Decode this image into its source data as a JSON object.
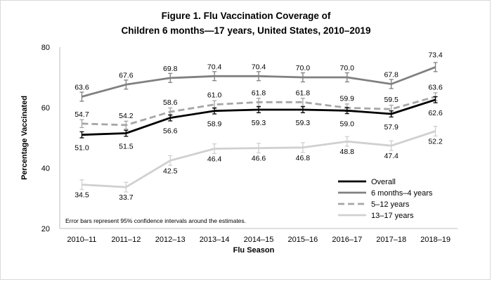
{
  "chart_data": {
    "type": "line",
    "title": "Figure 1. Flu Vaccination Coverage of",
    "subtitle": "Children 6 months—17 years, United States, 2010–2019",
    "xlabel": "Flu Season",
    "ylabel": "Percentage Vaccinated",
    "ylim": [
      20,
      80
    ],
    "yticks": [
      "20",
      "40",
      "60",
      "80"
    ],
    "grid": false,
    "legend_position": "bottom-right",
    "note": "Error bars represent 95% confidence intervals around the estimates.",
    "categories": [
      "2010–11",
      "2011–12",
      "2012–13",
      "2013–14",
      "2014–15",
      "2015–16",
      "2016–17",
      "2017–18",
      "2018–19"
    ],
    "series": [
      {
        "name": "Overall",
        "color": "#000000",
        "dash": false,
        "values": [
          51.0,
          51.5,
          56.6,
          58.9,
          59.3,
          59.3,
          59.0,
          57.9,
          62.6
        ],
        "labels": [
          "51.0",
          "51.5",
          "56.6",
          "58.9",
          "59.3",
          "59.3",
          "59.0",
          "57.9",
          "62.6"
        ],
        "ci": 1.0
      },
      {
        "name": "6 months–4 years",
        "color": "#808080",
        "dash": false,
        "values": [
          63.6,
          67.6,
          69.8,
          70.4,
          70.4,
          70.0,
          70.0,
          67.8,
          73.4
        ],
        "labels": [
          "63.6",
          "67.6",
          "69.8",
          "70.4",
          "70.4",
          "70.0",
          "70.0",
          "67.8",
          "73.4"
        ],
        "ci": 1.5
      },
      {
        "name": "5–12 years",
        "color": "#a6a6a6",
        "dash": true,
        "values": [
          54.7,
          54.2,
          58.6,
          61.0,
          61.8,
          61.8,
          59.9,
          59.5,
          63.6
        ],
        "labels": [
          "54.7",
          "54.2",
          "58.6",
          "61.0",
          "61.8",
          "61.8",
          "59.9",
          "59.5",
          "63.6"
        ],
        "ci": 1.3
      },
      {
        "name": "13–17 years",
        "color": "#d0d0d0",
        "dash": false,
        "values": [
          34.5,
          33.7,
          42.5,
          46.4,
          46.6,
          46.8,
          48.8,
          47.4,
          52.2
        ],
        "labels": [
          "34.5",
          "33.7",
          "42.5",
          "46.4",
          "46.6",
          "46.8",
          "48.8",
          "47.4",
          "52.2"
        ],
        "ci": 1.6
      }
    ]
  }
}
